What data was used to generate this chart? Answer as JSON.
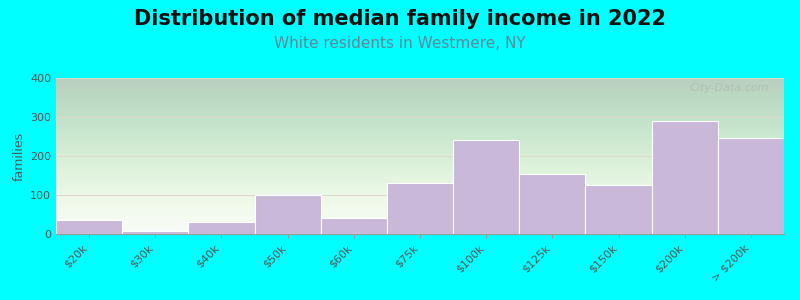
{
  "title": "Distribution of median family income in 2022",
  "subtitle": "White residents in Westmere, NY",
  "ylabel": "families",
  "categories": [
    "$20k",
    "$30k",
    "$40k",
    "$50k",
    "$60k",
    "$75k",
    "$100k",
    "$125k",
    "$150k",
    "$200k",
    "> $200k"
  ],
  "values": [
    35,
    8,
    30,
    100,
    40,
    130,
    240,
    155,
    125,
    290,
    245
  ],
  "bar_color": "#c9b8d8",
  "background_color": "#00ffff",
  "title_fontsize": 15,
  "subtitle_fontsize": 11,
  "subtitle_color": "#5a8a9a",
  "ylabel_fontsize": 9,
  "tick_fontsize": 8,
  "ylim": [
    0,
    400
  ],
  "yticks": [
    0,
    100,
    200,
    300,
    400
  ],
  "watermark": "City-Data.com",
  "grid_color": "#ddd8cc"
}
